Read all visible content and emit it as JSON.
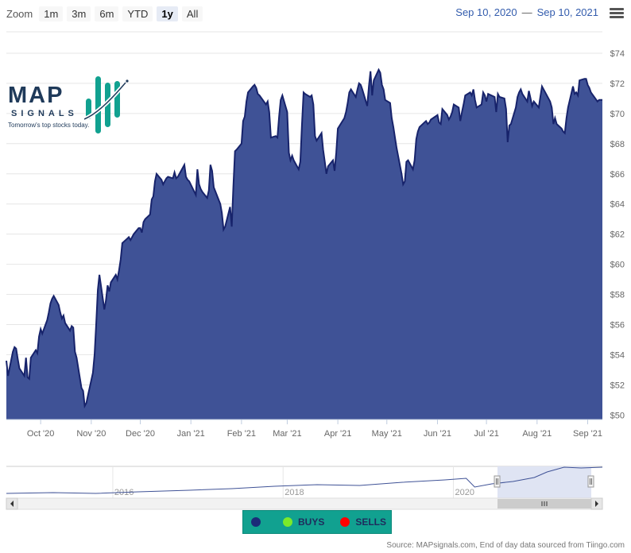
{
  "toolbar": {
    "zoom_label": "Zoom",
    "buttons": [
      "1m",
      "3m",
      "6m",
      "YTD",
      "1y",
      "All"
    ],
    "active": "1y"
  },
  "date_range": {
    "from": "Sep 10, 2020",
    "separator": "—",
    "to": "Sep 10, 2021"
  },
  "logo": {
    "word": "MAP",
    "sub": "SIGNALS",
    "tagline": "Tomorrow's top stocks today."
  },
  "legend": {
    "buys": "BUYS",
    "sells": "SELLS"
  },
  "source_note": "Source: MAPsignals.com, End of day data sourced from Tiingo.com",
  "colors": {
    "fill": "#3f5296",
    "line": "#17236b",
    "navigator_fill": "#dfe4f3",
    "legend_bg": "#11a190",
    "buys": "#7bea2a",
    "sells": "#ff0000",
    "neutral": "#1b2a78"
  },
  "navigator": {
    "year_labels": [
      "2016",
      "2018",
      "2020"
    ]
  },
  "chart_data": {
    "type": "area",
    "x_ticks": [
      "Oct '20",
      "Nov '20",
      "Dec '20",
      "Jan '21",
      "Feb '21",
      "Mar '21",
      "Apr '21",
      "May '21",
      "Jun '21",
      "Jul '21",
      "Aug '21",
      "Sep '21"
    ],
    "y_ticks": [
      "$50",
      "$52",
      "$54",
      "$56",
      "$58",
      "$60",
      "$62",
      "$64",
      "$66",
      "$68",
      "$70",
      "$72",
      "$74"
    ],
    "ylim": [
      49.7,
      75
    ],
    "series": [
      {
        "values": [
          [
            "2020-09-10",
            53.6
          ],
          [
            "2020-09-11",
            52.6
          ],
          [
            "2020-09-14",
            54.2
          ],
          [
            "2020-09-15",
            54.5
          ],
          [
            "2020-09-16",
            54.4
          ],
          [
            "2020-09-17",
            53.7
          ],
          [
            "2020-09-18",
            53.1
          ],
          [
            "2020-09-21",
            52.6
          ],
          [
            "2020-09-22",
            53.8
          ],
          [
            "2020-09-23",
            52.5
          ],
          [
            "2020-09-24",
            52.4
          ],
          [
            "2020-09-25",
            53.8
          ],
          [
            "2020-09-28",
            54.3
          ],
          [
            "2020-09-29",
            54.1
          ],
          [
            "2020-09-30",
            55.2
          ],
          [
            "2020-10-01",
            55.7
          ],
          [
            "2020-10-02",
            55.4
          ],
          [
            "2020-10-05",
            56.3
          ],
          [
            "2020-10-06",
            56.8
          ],
          [
            "2020-10-07",
            57.4
          ],
          [
            "2020-10-08",
            57.7
          ],
          [
            "2020-10-09",
            57.9
          ],
          [
            "2020-10-12",
            57.3
          ],
          [
            "2020-10-13",
            56.8
          ],
          [
            "2020-10-14",
            56.4
          ],
          [
            "2020-10-15",
            56.6
          ],
          [
            "2020-10-16",
            56.1
          ],
          [
            "2020-10-19",
            55.6
          ],
          [
            "2020-10-20",
            55.9
          ],
          [
            "2020-10-21",
            55.8
          ],
          [
            "2020-10-22",
            54.2
          ],
          [
            "2020-10-23",
            53.8
          ],
          [
            "2020-10-26",
            51.8
          ],
          [
            "2020-10-27",
            51.6
          ],
          [
            "2020-10-28",
            50.6
          ],
          [
            "2020-10-29",
            50.8
          ],
          [
            "2020-10-30",
            51.3
          ],
          [
            "2020-11-02",
            52.8
          ],
          [
            "2020-11-03",
            54.0
          ],
          [
            "2020-11-04",
            56.0
          ],
          [
            "2020-11-05",
            58.3
          ],
          [
            "2020-11-06",
            59.3
          ],
          [
            "2020-11-09",
            57.0
          ],
          [
            "2020-11-10",
            57.6
          ],
          [
            "2020-11-11",
            58.6
          ],
          [
            "2020-11-12",
            58.2
          ],
          [
            "2020-11-13",
            58.8
          ],
          [
            "2020-11-16",
            59.3
          ],
          [
            "2020-11-17",
            59.0
          ],
          [
            "2020-11-18",
            59.6
          ],
          [
            "2020-11-19",
            60.3
          ],
          [
            "2020-11-20",
            61.4
          ],
          [
            "2020-11-23",
            61.7
          ],
          [
            "2020-11-24",
            61.8
          ],
          [
            "2020-11-25",
            61.6
          ],
          [
            "2020-11-27",
            62.0
          ],
          [
            "2020-11-30",
            62.4
          ],
          [
            "2020-12-01",
            62.4
          ],
          [
            "2020-12-02",
            62.1
          ],
          [
            "2020-12-03",
            62.8
          ],
          [
            "2020-12-04",
            63.0
          ],
          [
            "2020-12-07",
            63.3
          ],
          [
            "2020-12-08",
            64.3
          ],
          [
            "2020-12-09",
            64.5
          ],
          [
            "2020-12-10",
            65.5
          ],
          [
            "2020-12-11",
            66.0
          ],
          [
            "2020-12-14",
            65.6
          ],
          [
            "2020-12-15",
            65.3
          ],
          [
            "2020-12-16",
            65.5
          ],
          [
            "2020-12-17",
            65.7
          ],
          [
            "2020-12-18",
            65.8
          ],
          [
            "2020-12-21",
            65.7
          ],
          [
            "2020-12-22",
            66.1
          ],
          [
            "2020-12-23",
            65.7
          ],
          [
            "2020-12-24",
            65.8
          ],
          [
            "2020-12-28",
            66.6
          ],
          [
            "2020-12-29",
            65.8
          ],
          [
            "2020-12-30",
            65.6
          ],
          [
            "2020-12-31",
            65.5
          ],
          [
            "2021-01-04",
            64.6
          ],
          [
            "2021-01-05",
            66.3
          ],
          [
            "2021-01-06",
            65.3
          ],
          [
            "2021-01-07",
            65.0
          ],
          [
            "2021-01-08",
            64.8
          ],
          [
            "2021-01-11",
            64.4
          ],
          [
            "2021-01-12",
            64.9
          ],
          [
            "2021-01-13",
            66.6
          ],
          [
            "2021-01-14",
            66.2
          ],
          [
            "2021-01-15",
            65.1
          ],
          [
            "2021-01-19",
            64.0
          ],
          [
            "2021-01-20",
            63.4
          ],
          [
            "2021-01-21",
            62.3
          ],
          [
            "2021-01-22",
            62.5
          ],
          [
            "2021-01-25",
            63.8
          ],
          [
            "2021-01-26",
            62.5
          ],
          [
            "2021-01-27",
            65.1
          ],
          [
            "2021-01-28",
            67.5
          ],
          [
            "2021-01-29",
            67.6
          ],
          [
            "2021-02-01",
            68.0
          ],
          [
            "2021-02-02",
            69.5
          ],
          [
            "2021-02-03",
            69.8
          ],
          [
            "2021-02-04",
            70.8
          ],
          [
            "2021-02-05",
            71.4
          ],
          [
            "2021-02-08",
            71.8
          ],
          [
            "2021-02-09",
            71.9
          ],
          [
            "2021-02-10",
            71.7
          ],
          [
            "2021-02-11",
            71.3
          ],
          [
            "2021-02-12",
            71.2
          ],
          [
            "2021-02-16",
            70.6
          ],
          [
            "2021-02-17",
            70.8
          ],
          [
            "2021-02-18",
            70.1
          ],
          [
            "2021-02-19",
            68.4
          ],
          [
            "2021-02-22",
            68.5
          ],
          [
            "2021-02-23",
            68.4
          ],
          [
            "2021-02-24",
            69.8
          ],
          [
            "2021-02-25",
            70.9
          ],
          [
            "2021-02-26",
            71.2
          ],
          [
            "2021-03-01",
            70.1
          ],
          [
            "2021-03-02",
            67.4
          ],
          [
            "2021-03-03",
            66.9
          ],
          [
            "2021-03-04",
            67.2
          ],
          [
            "2021-03-05",
            66.9
          ],
          [
            "2021-03-08",
            66.3
          ],
          [
            "2021-03-09",
            66.8
          ],
          [
            "2021-03-10",
            69.2
          ],
          [
            "2021-03-11",
            71.4
          ],
          [
            "2021-03-12",
            71.3
          ],
          [
            "2021-03-15",
            71.1
          ],
          [
            "2021-03-16",
            71.2
          ],
          [
            "2021-03-17",
            70.6
          ],
          [
            "2021-03-18",
            68.5
          ],
          [
            "2021-03-19",
            68.2
          ],
          [
            "2021-03-22",
            68.7
          ],
          [
            "2021-03-23",
            67.6
          ],
          [
            "2021-03-24",
            66.8
          ],
          [
            "2021-03-25",
            66.0
          ],
          [
            "2021-03-26",
            66.5
          ],
          [
            "2021-03-29",
            66.9
          ],
          [
            "2021-03-30",
            66.2
          ],
          [
            "2021-03-31",
            67.4
          ],
          [
            "2021-04-01",
            69.0
          ],
          [
            "2021-04-05",
            69.7
          ],
          [
            "2021-04-06",
            70.1
          ],
          [
            "2021-04-07",
            70.7
          ],
          [
            "2021-04-08",
            71.4
          ],
          [
            "2021-04-09",
            71.6
          ],
          [
            "2021-04-12",
            71.1
          ],
          [
            "2021-04-13",
            71.6
          ],
          [
            "2021-04-14",
            72.0
          ],
          [
            "2021-04-15",
            71.9
          ],
          [
            "2021-04-16",
            71.6
          ],
          [
            "2021-04-19",
            70.5
          ],
          [
            "2021-04-20",
            71.8
          ],
          [
            "2021-04-21",
            72.8
          ],
          [
            "2021-04-22",
            71.2
          ],
          [
            "2021-04-23",
            72.2
          ],
          [
            "2021-04-26",
            72.9
          ],
          [
            "2021-04-27",
            72.7
          ],
          [
            "2021-04-28",
            71.9
          ],
          [
            "2021-04-29",
            71.6
          ],
          [
            "2021-04-30",
            70.9
          ],
          [
            "2021-05-03",
            70.7
          ],
          [
            "2021-05-04",
            69.7
          ],
          [
            "2021-05-05",
            69.1
          ],
          [
            "2021-05-06",
            68.4
          ],
          [
            "2021-05-07",
            67.7
          ],
          [
            "2021-05-10",
            66.0
          ],
          [
            "2021-05-11",
            65.3
          ],
          [
            "2021-05-12",
            65.5
          ],
          [
            "2021-05-13",
            66.8
          ],
          [
            "2021-05-14",
            66.9
          ],
          [
            "2021-05-17",
            66.3
          ],
          [
            "2021-05-18",
            66.9
          ],
          [
            "2021-05-19",
            68.3
          ],
          [
            "2021-05-20",
            68.8
          ],
          [
            "2021-05-21",
            69.1
          ],
          [
            "2021-05-24",
            69.4
          ],
          [
            "2021-05-25",
            69.5
          ],
          [
            "2021-05-26",
            69.3
          ],
          [
            "2021-05-27",
            69.4
          ],
          [
            "2021-05-28",
            69.6
          ],
          [
            "2021-06-01",
            69.9
          ],
          [
            "2021-06-02",
            69.4
          ],
          [
            "2021-06-03",
            69.3
          ],
          [
            "2021-06-04",
            70.3
          ],
          [
            "2021-06-07",
            69.9
          ],
          [
            "2021-06-08",
            69.6
          ],
          [
            "2021-06-09",
            69.8
          ],
          [
            "2021-06-10",
            70.1
          ],
          [
            "2021-06-11",
            70.6
          ],
          [
            "2021-06-14",
            70.4
          ],
          [
            "2021-06-15",
            69.5
          ],
          [
            "2021-06-16",
            70.1
          ],
          [
            "2021-06-17",
            70.6
          ],
          [
            "2021-06-18",
            71.2
          ],
          [
            "2021-06-21",
            71.4
          ],
          [
            "2021-06-22",
            71.2
          ],
          [
            "2021-06-23",
            71.6
          ],
          [
            "2021-06-24",
            70.9
          ],
          [
            "2021-06-25",
            70.4
          ],
          [
            "2021-06-28",
            70.6
          ],
          [
            "2021-06-29",
            71.4
          ],
          [
            "2021-06-30",
            71.2
          ],
          [
            "2021-07-01",
            70.8
          ],
          [
            "2021-07-02",
            71.3
          ],
          [
            "2021-07-06",
            71.1
          ],
          [
            "2021-07-07",
            70.1
          ],
          [
            "2021-07-08",
            71.3
          ],
          [
            "2021-07-09",
            71.1
          ],
          [
            "2021-07-12",
            71.0
          ],
          [
            "2021-07-13",
            70.3
          ],
          [
            "2021-07-14",
            68.1
          ],
          [
            "2021-07-15",
            69.2
          ],
          [
            "2021-07-16",
            69.3
          ],
          [
            "2021-07-19",
            70.4
          ],
          [
            "2021-07-20",
            71.1
          ],
          [
            "2021-07-21",
            71.4
          ],
          [
            "2021-07-22",
            71.6
          ],
          [
            "2021-07-23",
            71.3
          ],
          [
            "2021-07-26",
            70.8
          ],
          [
            "2021-07-27",
            71.5
          ],
          [
            "2021-07-28",
            71.0
          ],
          [
            "2021-07-29",
            70.5
          ],
          [
            "2021-07-30",
            70.8
          ],
          [
            "2021-08-02",
            70.4
          ],
          [
            "2021-08-03",
            71.1
          ],
          [
            "2021-08-04",
            71.8
          ],
          [
            "2021-08-05",
            71.6
          ],
          [
            "2021-08-06",
            71.4
          ],
          [
            "2021-08-09",
            70.8
          ],
          [
            "2021-08-10",
            70.4
          ],
          [
            "2021-08-11",
            69.3
          ],
          [
            "2021-08-12",
            69.7
          ],
          [
            "2021-08-13",
            69.3
          ],
          [
            "2021-08-16",
            69.0
          ],
          [
            "2021-08-17",
            68.8
          ],
          [
            "2021-08-18",
            68.7
          ],
          [
            "2021-08-19",
            69.7
          ],
          [
            "2021-08-20",
            70.4
          ],
          [
            "2021-08-23",
            71.8
          ],
          [
            "2021-08-24",
            71.3
          ],
          [
            "2021-08-25",
            71.4
          ],
          [
            "2021-08-26",
            71.2
          ],
          [
            "2021-08-27",
            72.2
          ],
          [
            "2021-08-30",
            72.3
          ],
          [
            "2021-08-31",
            72.3
          ],
          [
            "2021-09-01",
            71.9
          ],
          [
            "2021-09-02",
            71.7
          ],
          [
            "2021-09-03",
            71.4
          ],
          [
            "2021-09-07",
            70.8
          ],
          [
            "2021-09-08",
            70.9
          ],
          [
            "2021-09-09",
            70.9
          ],
          [
            "2021-09-10",
            70.9
          ]
        ]
      }
    ]
  }
}
